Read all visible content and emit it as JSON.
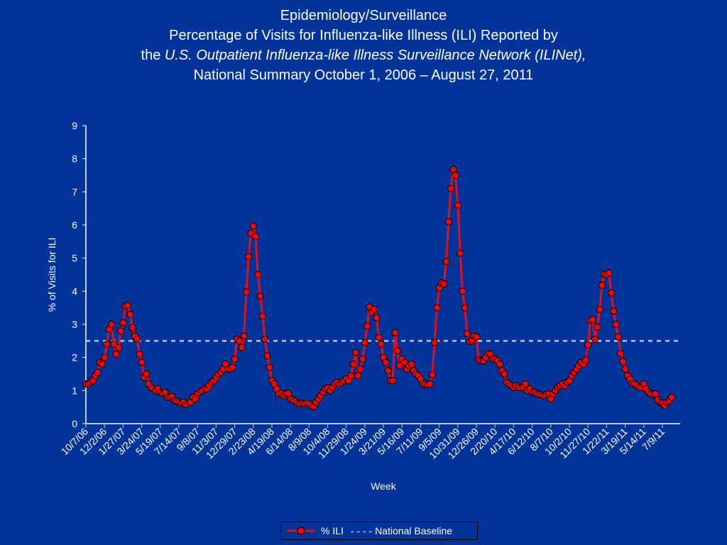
{
  "title": {
    "line1": "Epidemiology/Surveillance",
    "line2": "Percentage of Visits for Influenza-like Illness (ILI) Reported by",
    "line3_prefix": "the ",
    "line3_italic": "U.S. Outpatient Influenza-like Illness Surveillance Network (ILINet),",
    "line4": "National Summary October 1, 2006 – August 27, 2011"
  },
  "colors": {
    "background": "#023399",
    "series": "#e0101e",
    "marker": "#ff0000",
    "baseline": "#b8c8f0",
    "axis": "#ffffff"
  },
  "chart_data": {
    "type": "line",
    "xlabel": "Week",
    "ylabel": "% of Visits for ILI",
    "ylim": [
      0,
      9
    ],
    "yticks": [
      0,
      1,
      2,
      3,
      4,
      5,
      6,
      7,
      8,
      9
    ],
    "xtick_labels": [
      "10/7/06",
      "12/2/06",
      "1/27/07",
      "3/24/07",
      "5/19/07",
      "7/14/07",
      "9/8/07",
      "11/3/07",
      "12/29/07",
      "2/23/08",
      "4/19/08",
      "6/14/08",
      "8/9/08",
      "10/4/08",
      "11/29/08",
      "1/24/09",
      "3/21/09",
      "5/16/09",
      "7/11/09",
      "9/5/09",
      "10/31/09",
      "12/26/09",
      "2/20/10",
      "4/17/10",
      "6/12/10",
      "8/7/10",
      "10/2/10",
      "11/27/10",
      "1/22/11",
      "3/19/11",
      "5/14/11",
      "7/9/11"
    ],
    "xtick_interval_weeks": 8,
    "grid": false,
    "legend_position": "bottom",
    "series": [
      {
        "name": "% ILI",
        "style": "line-with-markers",
        "values": [
          1.2,
          1.2,
          1.25,
          1.3,
          1.45,
          1.55,
          1.85,
          1.8,
          2.0,
          2.4,
          2.85,
          3.0,
          2.4,
          2.1,
          2.3,
          2.8,
          3.05,
          3.55,
          3.57,
          3.3,
          2.9,
          2.65,
          2.55,
          2.1,
          1.85,
          1.4,
          1.5,
          1.2,
          1.1,
          1.05,
          1.0,
          1.05,
          0.95,
          0.92,
          0.95,
          0.8,
          0.8,
          0.82,
          0.7,
          0.68,
          0.65,
          0.62,
          0.65,
          0.58,
          0.62,
          0.65,
          0.8,
          0.75,
          0.9,
          0.95,
          1.0,
          1.05,
          1.05,
          1.15,
          1.25,
          1.3,
          1.4,
          1.5,
          1.55,
          1.65,
          1.8,
          1.65,
          1.65,
          1.7,
          1.95,
          2.55,
          2.5,
          2.3,
          2.65,
          3.98,
          5.05,
          5.75,
          5.97,
          5.65,
          4.5,
          3.85,
          3.25,
          2.55,
          2.05,
          1.7,
          1.3,
          1.2,
          1.05,
          0.9,
          0.92,
          0.85,
          0.9,
          0.92,
          0.75,
          0.72,
          0.68,
          0.62,
          0.6,
          0.62,
          0.6,
          0.62,
          0.6,
          0.55,
          0.52,
          0.65,
          0.75,
          0.85,
          0.95,
          1.05,
          1.08,
          1.0,
          1.1,
          1.2,
          1.25,
          1.2,
          1.25,
          1.3,
          1.35,
          1.3,
          1.45,
          1.8,
          2.15,
          1.45,
          1.65,
          1.95,
          2.45,
          2.95,
          3.52,
          3.38,
          3.45,
          3.2,
          2.6,
          2.4,
          2.0,
          1.85,
          1.6,
          1.3,
          1.3,
          2.75,
          2.2,
          1.75,
          1.95,
          1.85,
          1.65,
          1.75,
          1.8,
          1.6,
          1.5,
          1.45,
          1.35,
          1.2,
          1.2,
          1.18,
          1.2,
          1.48,
          2.45,
          3.5,
          4.1,
          4.25,
          4.22,
          4.9,
          6.1,
          7.1,
          7.68,
          7.5,
          6.6,
          5.15,
          4.0,
          3.5,
          2.72,
          2.48,
          2.5,
          2.65,
          2.62,
          1.92,
          1.9,
          1.9,
          2.0,
          2.12,
          2.1,
          1.95,
          1.95,
          1.9,
          1.8,
          1.6,
          1.5,
          1.25,
          1.2,
          1.15,
          1.1,
          1.15,
          1.1,
          1.08,
          1.1,
          1.2,
          1.0,
          1.05,
          0.95,
          0.95,
          0.9,
          0.88,
          0.87,
          0.85,
          0.88,
          0.9,
          0.75,
          0.9,
          1.0,
          1.1,
          1.15,
          1.2,
          1.15,
          1.25,
          1.3,
          1.45,
          1.55,
          1.65,
          1.75,
          1.85,
          1.8,
          1.92,
          2.38,
          3.12,
          3.15,
          2.55,
          2.92,
          3.45,
          4.18,
          4.52,
          4.5,
          4.55,
          3.95,
          3.4,
          3.0,
          2.62,
          2.12,
          1.88,
          1.65,
          1.45,
          1.35,
          1.22,
          1.2,
          1.15,
          1.1,
          1.1,
          1.2,
          1.05,
          0.95,
          0.9,
          0.88,
          0.9,
          0.72,
          0.65,
          0.62,
          0.55,
          0.65,
          0.7,
          0.8
        ]
      },
      {
        "name": "National Baseline",
        "style": "dashed",
        "value": 2.5
      }
    ]
  },
  "legend": {
    "ili_label": "% ILI",
    "baseline_label": "- - - -  National Baseline"
  }
}
